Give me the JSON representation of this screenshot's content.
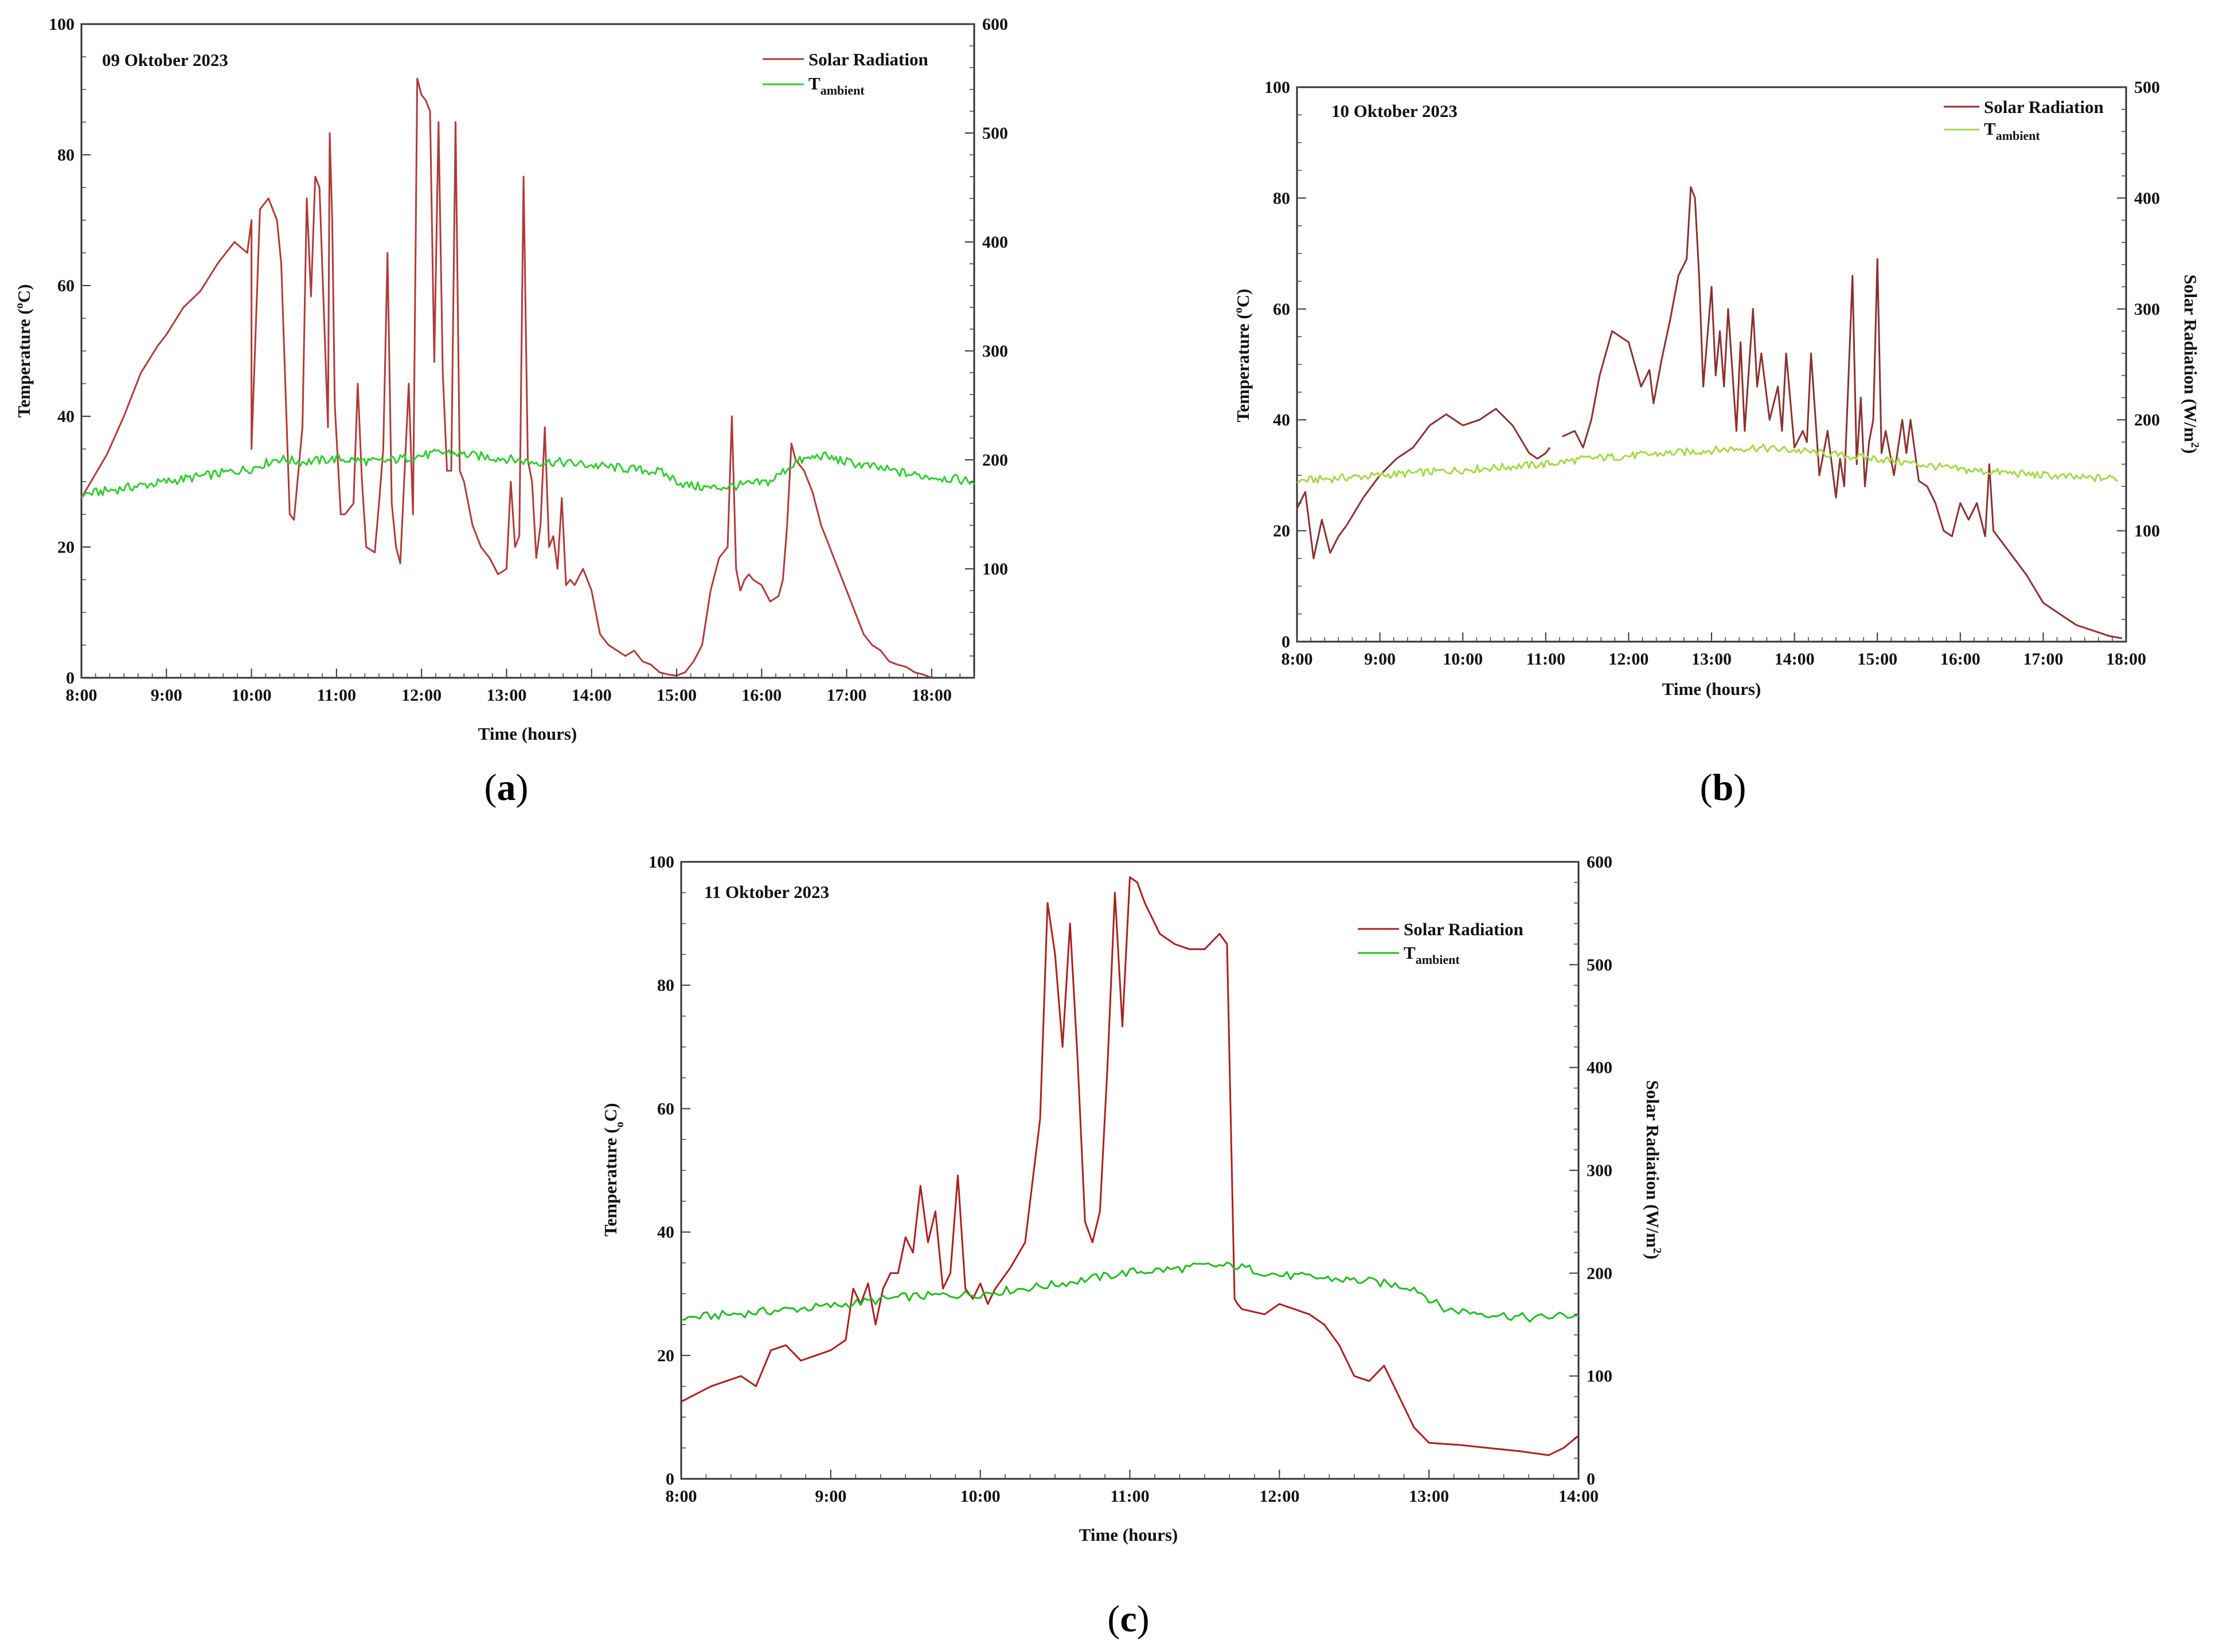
{
  "chart_data": [
    {
      "type": "line",
      "caption_letter": "a",
      "date_label": "09 Oktober 2023",
      "xlabel": "Time (hours)",
      "ylabel": "Temperature (°C)",
      "ylabel_parts": {
        "main": "Temperature (",
        "sup": "o",
        "unit": "C)"
      },
      "y2label": "",
      "x_ticks": [
        "8:00",
        "9:00",
        "10:00",
        "11:00",
        "12:00",
        "13:00",
        "14:00",
        "15:00",
        "16:00",
        "17:00",
        "18:00"
      ],
      "xlim": [
        8,
        18.5
      ],
      "y_ticks": [
        "0",
        "20",
        "40",
        "60",
        "80",
        "100"
      ],
      "ylim": [
        0,
        100
      ],
      "y2_ticks": [
        "100",
        "200",
        "300",
        "400",
        "500",
        "600"
      ],
      "y2_tick_values": [
        100,
        200,
        300,
        400,
        500,
        600
      ],
      "y2lim": [
        0,
        600
      ],
      "legend": {
        "position": "top-right",
        "entries": [
          {
            "label": "Solar Radiation",
            "sub": "",
            "color": "#b03a3a"
          },
          {
            "label": "T",
            "sub": "ambient",
            "color": "#33cc33"
          }
        ]
      },
      "series": [
        {
          "name": "Solar Radiation",
          "axis": "right",
          "color": "#b03a3a",
          "x": [
            8.0,
            8.15,
            8.3,
            8.5,
            8.7,
            8.9,
            9.0,
            9.2,
            9.4,
            9.6,
            9.8,
            9.95,
            10.0,
            10.0,
            10.1,
            10.2,
            10.3,
            10.35,
            10.45,
            10.5,
            10.6,
            10.65,
            10.7,
            10.75,
            10.8,
            10.9,
            10.92,
            10.95,
            10.98,
            11.05,
            11.1,
            11.2,
            11.25,
            11.3,
            11.35,
            11.45,
            11.5,
            11.55,
            11.6,
            11.65,
            11.7,
            11.75,
            11.85,
            11.9,
            11.95,
            12.0,
            12.05,
            12.1,
            12.15,
            12.2,
            12.25,
            12.3,
            12.35,
            12.4,
            12.45,
            12.5,
            12.55,
            12.6,
            12.7,
            12.8,
            12.9,
            13.0,
            13.05,
            13.1,
            13.15,
            13.2,
            13.25,
            13.3,
            13.35,
            13.4,
            13.45,
            13.5,
            13.55,
            13.6,
            13.65,
            13.7,
            13.75,
            13.8,
            13.9,
            14.0,
            14.1,
            14.2,
            14.3,
            14.4,
            14.5,
            14.6,
            14.7,
            14.8,
            14.9,
            15.0,
            15.1,
            15.2,
            15.3,
            15.4,
            15.5,
            15.6,
            15.65,
            15.7,
            15.75,
            15.8,
            15.85,
            15.9,
            16.0,
            16.1,
            16.2,
            16.25,
            16.3,
            16.35,
            16.4,
            16.5,
            16.6,
            16.7,
            16.8,
            16.9,
            17.0,
            17.1,
            17.2,
            17.3,
            17.4,
            17.5,
            17.6,
            17.7,
            17.8,
            17.9,
            18.0
          ],
          "y": [
            165,
            185,
            205,
            240,
            280,
            305,
            315,
            340,
            355,
            380,
            400,
            390,
            420,
            210,
            430,
            440,
            420,
            380,
            150,
            145,
            230,
            440,
            350,
            460,
            450,
            230,
            500,
            420,
            250,
            150,
            150,
            160,
            270,
            180,
            120,
            115,
            160,
            210,
            390,
            160,
            120,
            105,
            270,
            150,
            550,
            535,
            530,
            520,
            290,
            510,
            280,
            190,
            190,
            510,
            190,
            180,
            160,
            140,
            120,
            110,
            95,
            100,
            180,
            120,
            130,
            460,
            200,
            180,
            110,
            140,
            230,
            120,
            130,
            100,
            165,
            85,
            90,
            85,
            100,
            80,
            40,
            30,
            25,
            20,
            25,
            15,
            12,
            5,
            3,
            2,
            5,
            15,
            30,
            80,
            110,
            120,
            240,
            100,
            80,
            90,
            95,
            90,
            85,
            70,
            75,
            90,
            140,
            215,
            200,
            190,
            170,
            140,
            120,
            100,
            80,
            60,
            40,
            30,
            25,
            15,
            12,
            10,
            5,
            3,
            0
          ]
        },
        {
          "name": "T ambient",
          "axis": "left",
          "color": "#33cc33",
          "x": [
            8.0,
            8.5,
            9.0,
            9.5,
            10.0,
            10.3,
            10.6,
            11.0,
            11.5,
            12.0,
            12.3,
            12.6,
            13.0,
            13.3,
            13.6,
            14.0,
            14.4,
            14.8,
            15.1,
            15.4,
            15.8,
            16.1,
            16.4,
            16.7,
            17.0,
            17.4,
            17.8,
            18.2,
            18.5
          ],
          "y": [
            28,
            29,
            30,
            31,
            32,
            33.5,
            33,
            33.5,
            33,
            34,
            34.5,
            34,
            33.5,
            33,
            33,
            32.5,
            32,
            31.5,
            29.5,
            29,
            29.5,
            30,
            33,
            34,
            33,
            32,
            31,
            30.5,
            30
          ],
          "noise": 0.7
        }
      ]
    },
    {
      "type": "line",
      "caption_letter": "b",
      "date_label": "10 Oktober 2023",
      "xlabel": "Time (hours)",
      "ylabel": "Temperature (°C)",
      "ylabel_parts": {
        "main": "Temperature (",
        "sup": "o",
        "unit": "C)"
      },
      "y2label": "Solar Radiation (W/m²)",
      "y2label_parts": {
        "main": "Solar Radiation (W/m",
        "sup": "2",
        "unit": ")"
      },
      "x_ticks": [
        "8:00",
        "9:00",
        "10:00",
        "11:00",
        "12:00",
        "13:00",
        "14:00",
        "15:00",
        "16:00",
        "17:00",
        "18:00"
      ],
      "xlim": [
        8,
        18
      ],
      "y_ticks": [
        "0",
        "20",
        "40",
        "60",
        "80",
        "100"
      ],
      "ylim": [
        0,
        100
      ],
      "y2_ticks": [
        "100",
        "200",
        "300",
        "400",
        "500"
      ],
      "y2_tick_values": [
        100,
        200,
        300,
        400,
        500
      ],
      "y2lim": [
        0,
        500
      ],
      "legend": {
        "position": "top-right",
        "entries": [
          {
            "label": "Solar Radiation",
            "sub": "",
            "color": "#8b3030"
          },
          {
            "label": "T",
            "sub": "ambient",
            "color": "#a6d84a"
          }
        ]
      },
      "series": [
        {
          "name": "Solar Radiation",
          "axis": "right",
          "color": "#8b3030",
          "x": [
            8.0,
            8.1,
            8.2,
            8.3,
            8.4,
            8.5,
            8.6,
            8.8,
            9.0,
            9.2,
            9.4,
            9.6,
            9.8,
            10.0,
            10.2,
            10.4,
            10.6,
            10.8,
            10.9,
            11.0,
            11.05
          ],
          "y": [
            120,
            135,
            75,
            110,
            80,
            95,
            105,
            130,
            150,
            165,
            175,
            195,
            205,
            195,
            200,
            210,
            195,
            170,
            165,
            170,
            175
          ]
        },
        {
          "name": "Solar Radiation",
          "axis": "right",
          "color": "#8b3030",
          "x": [
            11.2,
            11.35,
            11.45,
            11.55,
            11.65,
            11.8,
            12.0,
            12.15,
            12.25,
            12.3,
            12.4,
            12.5,
            12.6,
            12.7,
            12.75,
            12.8,
            12.85,
            12.9,
            13.0,
            13.05,
            13.1,
            13.15,
            13.2,
            13.3,
            13.35,
            13.4,
            13.5,
            13.55,
            13.6,
            13.7,
            13.8,
            13.85,
            13.9,
            14.0,
            14.1,
            14.15,
            14.2,
            14.3,
            14.4,
            14.5,
            14.55,
            14.6,
            14.7,
            14.75,
            14.8,
            14.85,
            14.9,
            14.95,
            15.0,
            15.05,
            15.1,
            15.2,
            15.3,
            15.35,
            15.4,
            15.5,
            15.6,
            15.7,
            15.8,
            15.9,
            16.0,
            16.1,
            16.2,
            16.3,
            16.35,
            16.4,
            16.6,
            16.8,
            17.0,
            17.2,
            17.4,
            17.6,
            17.8,
            17.95
          ],
          "y": [
            185,
            190,
            175,
            200,
            240,
            280,
            270,
            230,
            245,
            215,
            255,
            290,
            330,
            345,
            410,
            400,
            330,
            230,
            320,
            240,
            280,
            230,
            300,
            190,
            270,
            190,
            300,
            230,
            260,
            200,
            230,
            190,
            260,
            175,
            190,
            180,
            260,
            150,
            190,
            130,
            165,
            140,
            330,
            160,
            220,
            140,
            180,
            200,
            345,
            170,
            190,
            150,
            200,
            170,
            200,
            145,
            140,
            125,
            100,
            95,
            125,
            110,
            125,
            95,
            160,
            100,
            80,
            60,
            35,
            25,
            15,
            10,
            5,
            3
          ]
        },
        {
          "name": "T ambient",
          "axis": "left",
          "color": "#a6d84a",
          "x": [
            8.0,
            8.5,
            9.0,
            9.5,
            10.0,
            10.5,
            11.0,
            11.5,
            12.0,
            12.5,
            13.0,
            13.5,
            14.0,
            14.3,
            14.6,
            15.0,
            15.5,
            16.0,
            16.5,
            17.0,
            17.5,
            17.9
          ],
          "y": [
            29,
            29.5,
            30,
            30.5,
            31,
            31.5,
            32,
            33,
            33.5,
            34,
            34.5,
            35,
            34.5,
            34,
            33.5,
            33,
            32,
            31,
            30.5,
            30,
            29.5,
            29.5
          ],
          "noise": 0.7
        }
      ]
    },
    {
      "type": "line",
      "caption_letter": "c",
      "date_label": "11 Oktober 2023",
      "xlabel": "Time (hours)",
      "ylabel": "Temperature (°C)",
      "ylabel_parts": {
        "main": "Temperature (",
        "sup": "o",
        "unit": "C)"
      },
      "y2label": "Solar Radiation (W/m²)",
      "y2label_parts": {
        "main": "Solar Radiation (W/m",
        "sup": "2",
        "unit": ")"
      },
      "x_ticks": [
        "8:00",
        "9:00",
        "10:00",
        "11:00",
        "12:00",
        "13:00",
        "14:00"
      ],
      "xlim": [
        8,
        14
      ],
      "y_ticks": [
        "0",
        "20",
        "40",
        "60",
        "80",
        "100"
      ],
      "ylim": [
        0,
        100
      ],
      "y2_ticks": [
        "0",
        "100",
        "200",
        "300",
        "400",
        "500",
        "600"
      ],
      "y2_tick_values": [
        0,
        100,
        200,
        300,
        400,
        500,
        600
      ],
      "y2lim": [
        0,
        600
      ],
      "legend": {
        "position": "top-right",
        "entries": [
          {
            "label": "Solar Radiation",
            "sub": "",
            "color": "#aa2020"
          },
          {
            "label": "T",
            "sub": "ambient",
            "color": "#22bb22"
          }
        ]
      },
      "series": [
        {
          "name": "Solar Radiation",
          "axis": "right",
          "color": "#aa2020",
          "x": [
            8.0,
            8.2,
            8.4,
            8.5,
            8.6,
            8.7,
            8.8,
            8.9,
            9.0,
            9.1,
            9.15,
            9.2,
            9.25,
            9.3,
            9.35,
            9.4,
            9.45,
            9.5,
            9.55,
            9.6,
            9.65,
            9.7,
            9.75,
            9.8,
            9.85,
            9.9,
            9.95,
            10.0,
            10.05,
            10.1,
            10.2,
            10.3,
            10.4,
            10.45,
            10.5,
            10.55,
            10.6,
            10.65,
            10.7,
            10.75,
            10.8,
            10.85,
            10.9,
            10.95,
            11.0,
            11.05,
            11.1,
            11.2,
            11.3,
            11.4,
            11.5,
            11.6,
            11.65,
            11.7,
            11.72,
            11.75,
            11.9,
            12.0,
            12.1,
            12.2,
            12.3,
            12.4,
            12.5,
            12.6,
            12.7,
            12.8,
            12.9,
            13.0,
            13.2,
            13.4,
            13.6,
            13.8,
            13.9,
            14.0
          ],
          "y": [
            75,
            90,
            100,
            90,
            125,
            130,
            115,
            120,
            125,
            135,
            185,
            170,
            190,
            150,
            185,
            200,
            200,
            235,
            220,
            285,
            230,
            260,
            185,
            200,
            295,
            185,
            175,
            190,
            170,
            185,
            205,
            230,
            350,
            560,
            510,
            420,
            540,
            410,
            250,
            230,
            260,
            400,
            570,
            440,
            585,
            580,
            560,
            530,
            520,
            515,
            515,
            530,
            520,
            175,
            170,
            165,
            160,
            170,
            165,
            160,
            150,
            130,
            100,
            95,
            110,
            80,
            50,
            35,
            33,
            30,
            27,
            23,
            30,
            42
          ]
        },
        {
          "name": "T ambient",
          "axis": "left",
          "color": "#22bb22",
          "x": [
            8.0,
            8.5,
            9.0,
            9.5,
            10.0,
            10.5,
            11.0,
            11.3,
            11.5,
            11.7,
            12.0,
            12.3,
            12.6,
            12.9,
            13.1,
            13.3,
            13.5,
            13.7,
            13.9,
            14.0
          ],
          "y": [
            26,
            27,
            28,
            29.5,
            30,
            31.5,
            33.5,
            34,
            34.5,
            34.5,
            33,
            32.5,
            32,
            31,
            27.5,
            27,
            26.5,
            26,
            26.5,
            26.5
          ],
          "noise": 0.7
        }
      ]
    }
  ]
}
